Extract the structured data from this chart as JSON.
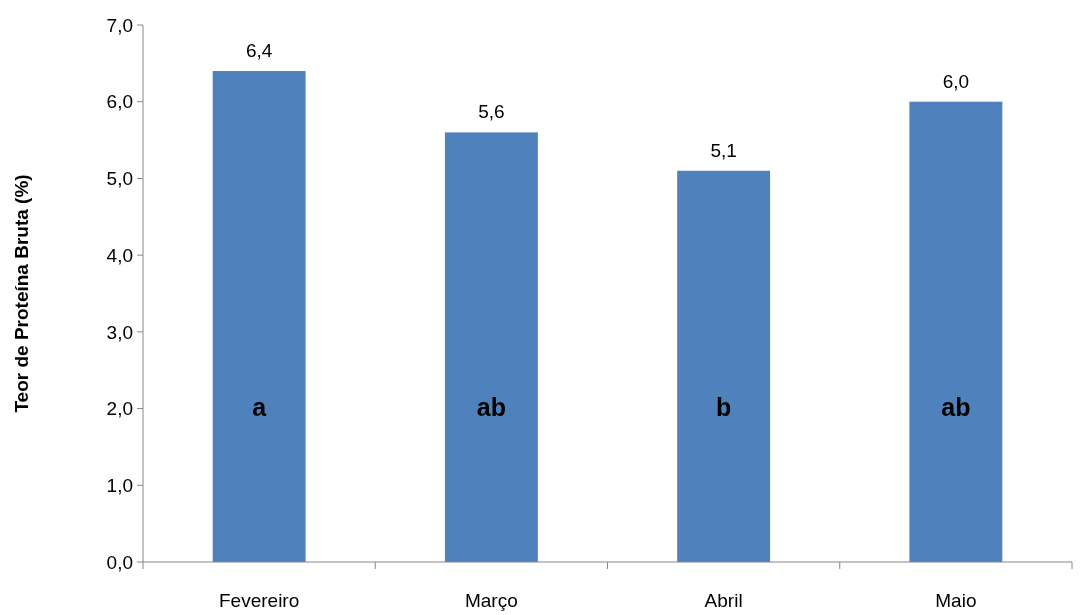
{
  "chart_data": {
    "type": "bar",
    "ylabel": "Teor de Proteína Bruta (%)",
    "categories": [
      "Fevereiro",
      "Março",
      "Abril",
      "Maio"
    ],
    "values": [
      6.4,
      5.6,
      5.1,
      6.0
    ],
    "color": "#4f81bd",
    "value_labels": [
      "6,4",
      "5,6",
      "5,1",
      "6,0"
    ],
    "ylim": [
      0,
      7
    ],
    "yticks": [
      {
        "value": 0,
        "label": "0,0"
      },
      {
        "value": 1,
        "label": "1,0"
      },
      {
        "value": 2,
        "label": "2,0"
      },
      {
        "value": 3,
        "label": "3,0"
      },
      {
        "value": 4,
        "label": "4,0"
      },
      {
        "value": 5,
        "label": "5,0"
      },
      {
        "value": 6,
        "label": "6,0"
      },
      {
        "value": 7,
        "label": "7,0"
      }
    ],
    "annotations": [
      "a",
      "ab",
      "b",
      "ab"
    ],
    "grid": false
  }
}
